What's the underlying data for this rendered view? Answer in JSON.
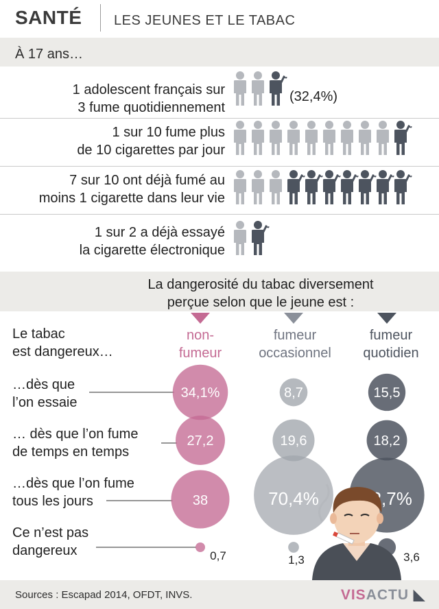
{
  "header": {
    "category": "SANTÉ",
    "subtitle": "LES JEUNES ET LE TABAC"
  },
  "age_label": "À 17 ans…",
  "stats": [
    {
      "line1": "1 adolescent français sur",
      "line2": "3 fume quotidiennement",
      "total": 3,
      "smokers": 1,
      "note": "(32,4%)"
    },
    {
      "line1": "1 sur 10 fume plus",
      "line2": "de 10 cigarettes par jour",
      "total": 10,
      "smokers": 1
    },
    {
      "line1": "7 sur 10 ont déjà fumé au",
      "line2": "moins 1 cigarette dans leur vie",
      "total": 10,
      "smokers": 7
    },
    {
      "line1": "1 sur 2 a déjà essayé",
      "line2": "la cigarette électronique",
      "total": 2,
      "smokers": 1
    }
  ],
  "danger": {
    "title_line1": "La dangerosité du tabac diversement",
    "title_line2": "perçue selon que le jeune est :",
    "question_line1": "Le tabac",
    "question_line2": "est dangereux…",
    "columns": [
      {
        "line1": "non-",
        "line2": "fumeur",
        "color": "#c46a93"
      },
      {
        "line1": "fumeur",
        "line2": "occasionnel",
        "color": "#8a8f99"
      },
      {
        "line1": "fumeur",
        "line2": "quotidien",
        "color": "#4d545f"
      }
    ],
    "rows": [
      {
        "line1": "…dès que",
        "line2": "l’on essaie",
        "values": [
          34.1,
          8.7,
          15.5
        ],
        "labels": [
          "34,1%",
          "8,7",
          "15,5"
        ]
      },
      {
        "line1": "… dès que l’on fume",
        "line2": "de temps en temps",
        "values": [
          27.2,
          19.6,
          18.2
        ],
        "labels": [
          "27,2",
          "19,6",
          "18,2"
        ]
      },
      {
        "line1": "…dès que l’on fume",
        "line2": "tous les jours",
        "values": [
          38,
          70.4,
          62.7
        ],
        "labels": [
          "38",
          "70,4%",
          "62,7%"
        ]
      },
      {
        "line1": "Ce n’est pas",
        "line2": "dangereux",
        "values": [
          0.7,
          1.3,
          3.6
        ],
        "labels": [
          "0,7",
          "1,3",
          "3,6"
        ]
      }
    ]
  },
  "footer": {
    "sources": "Sources : Escapad 2014, OFDT, INVS.",
    "logo_a": "VIS",
    "logo_b": "ACTU"
  },
  "colors": {
    "band": "#ecebe8",
    "figure_light": "#b5b8bd",
    "figure_dark": "#4d545f",
    "pink": "#c46a93"
  }
}
